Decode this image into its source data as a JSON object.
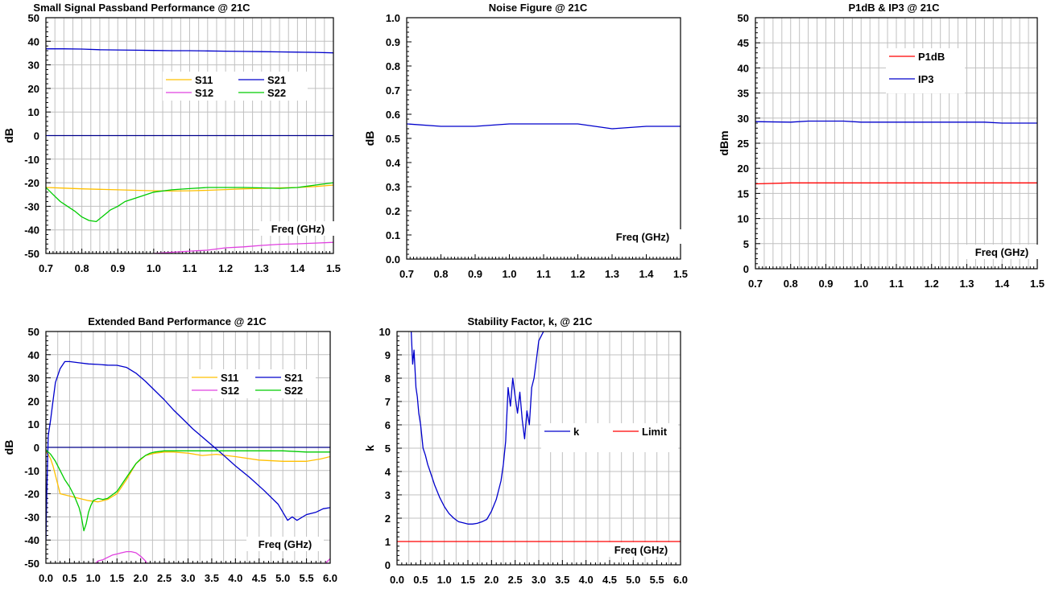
{
  "chart_data": [
    {
      "id": "c1",
      "type": "line",
      "title": "Small Signal Passband Performance @ 21C",
      "xlabel": "Freq (GHz)",
      "ylabel": "dB",
      "xlim": [
        0.7,
        1.5
      ],
      "ylim": [
        -50,
        50
      ],
      "xticks": [
        "0.7",
        "0.8",
        "0.9",
        "1.0",
        "1.1",
        "1.2",
        "1.3",
        "1.4",
        "1.5"
      ],
      "yticks": [
        "50",
        "40",
        "30",
        "20",
        "10",
        "0",
        "-10",
        "-20",
        "-30",
        "-40",
        "-50"
      ],
      "grid": true,
      "legend_cols": 2,
      "reflines": [
        {
          "y": 0,
          "color": "#00008b"
        }
      ],
      "series": [
        {
          "name": "S11",
          "color": "#ffc000",
          "x": [
            0.7,
            0.75,
            0.8,
            0.85,
            0.9,
            0.95,
            1.0,
            1.05,
            1.1,
            1.15,
            1.2,
            1.25,
            1.3,
            1.35,
            1.4,
            1.45,
            1.5
          ],
          "y": [
            -22,
            -22.3,
            -22.6,
            -22.8,
            -23,
            -23.2,
            -23.4,
            -23.5,
            -23.4,
            -23.2,
            -22.9,
            -22.6,
            -22.4,
            -22.2,
            -22,
            -21.6,
            -21
          ]
        },
        {
          "name": "S21",
          "color": "#0000cc",
          "x": [
            0.7,
            0.75,
            0.8,
            0.85,
            0.9,
            0.95,
            1.0,
            1.05,
            1.1,
            1.15,
            1.2,
            1.25,
            1.3,
            1.35,
            1.4,
            1.45,
            1.5
          ],
          "y": [
            36.8,
            36.8,
            36.7,
            36.4,
            36.3,
            36.2,
            36.1,
            36,
            36,
            35.9,
            35.8,
            35.7,
            35.6,
            35.5,
            35.4,
            35.3,
            35.1
          ]
        },
        {
          "name": "S12",
          "color": "#e040e0",
          "x": [
            0.7,
            0.8,
            0.9,
            1.0,
            1.05,
            1.1,
            1.15,
            1.2,
            1.25,
            1.3,
            1.35,
            1.4,
            1.45,
            1.5
          ],
          "y": [
            -56,
            -54,
            -52,
            -50,
            -49.5,
            -49,
            -48.6,
            -47.6,
            -47.2,
            -46.6,
            -46.1,
            -45.9,
            -45.6,
            -45.3
          ]
        },
        {
          "name": "S22",
          "color": "#00cc00",
          "x": [
            0.7,
            0.72,
            0.74,
            0.76,
            0.78,
            0.8,
            0.82,
            0.84,
            0.86,
            0.88,
            0.9,
            0.92,
            0.95,
            1.0,
            1.05,
            1.1,
            1.15,
            1.2,
            1.25,
            1.3,
            1.35,
            1.4,
            1.45,
            1.5
          ],
          "y": [
            -22,
            -25,
            -28,
            -30,
            -32,
            -34.5,
            -36,
            -36.5,
            -34,
            -31.5,
            -30,
            -28,
            -26.5,
            -24,
            -23,
            -22.5,
            -22,
            -22,
            -22,
            -22.2,
            -22.4,
            -22,
            -21,
            -20
          ]
        }
      ]
    },
    {
      "id": "c2",
      "type": "line",
      "title": "Noise Figure @ 21C",
      "xlabel": "Freq (GHz)",
      "ylabel": "dB",
      "xlim": [
        0.7,
        1.5
      ],
      "ylim": [
        0,
        1
      ],
      "xticks": [
        "0.7",
        "0.8",
        "0.9",
        "1.0",
        "1.1",
        "1.2",
        "1.3",
        "1.4",
        "1.5"
      ],
      "yticks": [
        "1.0",
        "0.9",
        "0.8",
        "0.7",
        "0.6",
        "0.5",
        "0.4",
        "0.3",
        "0.2",
        "0.1",
        "0.0"
      ],
      "grid": false,
      "legend_cols": 0,
      "reflines": [],
      "series": [
        {
          "name": "",
          "color": "#0000cc",
          "x": [
            0.7,
            0.8,
            0.9,
            1.0,
            1.1,
            1.2,
            1.25,
            1.3,
            1.35,
            1.4,
            1.5
          ],
          "y": [
            0.56,
            0.55,
            0.55,
            0.56,
            0.56,
            0.56,
            0.55,
            0.54,
            0.545,
            0.55,
            0.55
          ]
        }
      ]
    },
    {
      "id": "c3",
      "type": "line",
      "title": "P1dB & IP3 @ 21C",
      "xlabel": "Freq (GHz)",
      "ylabel": "dBm",
      "xlim": [
        0.7,
        1.5
      ],
      "ylim": [
        0,
        50
      ],
      "xticks": [
        "0.7",
        "0.8",
        "0.9",
        "1.0",
        "1.1",
        "1.2",
        "1.3",
        "1.4",
        "1.5"
      ],
      "yticks": [
        "50",
        "45",
        "40",
        "35",
        "30",
        "25",
        "20",
        "15",
        "10",
        "5",
        "0"
      ],
      "grid": true,
      "legend_cols": 1,
      "reflines": [],
      "series": [
        {
          "name": "P1dB",
          "color": "#ff0000",
          "x": [
            0.7,
            0.8,
            0.9,
            1.0,
            1.1,
            1.2,
            1.3,
            1.4,
            1.5
          ],
          "y": [
            16.9,
            17.1,
            17.1,
            17.1,
            17.1,
            17.1,
            17.1,
            17.1,
            17.1
          ]
        },
        {
          "name": "IP3",
          "color": "#0000cc",
          "x": [
            0.7,
            0.8,
            0.85,
            0.9,
            0.95,
            1.0,
            1.1,
            1.2,
            1.3,
            1.35,
            1.4,
            1.5
          ],
          "y": [
            29.3,
            29.2,
            29.4,
            29.4,
            29.4,
            29.2,
            29.2,
            29.2,
            29.2,
            29.2,
            29,
            29
          ]
        }
      ]
    },
    {
      "id": "c4",
      "type": "line",
      "title": "Extended Band Performance @ 21C",
      "xlabel": "Freq (GHz)",
      "ylabel": "dB",
      "xlim": [
        0,
        6
      ],
      "ylim": [
        -50,
        50
      ],
      "xticks": [
        "0.0",
        "0.5",
        "1.0",
        "1.5",
        "2.0",
        "2.5",
        "3.0",
        "3.5",
        "4.0",
        "4.5",
        "5.0",
        "5.5",
        "6.0"
      ],
      "yticks": [
        "50",
        "40",
        "30",
        "20",
        "10",
        "0",
        "-10",
        "-20",
        "-30",
        "-40",
        "-50"
      ],
      "grid": true,
      "legend_cols": 2,
      "reflines": [
        {
          "y": 0,
          "color": "#00008b"
        }
      ],
      "series": [
        {
          "name": "S11",
          "color": "#ffc000",
          "x": [
            0,
            0.05,
            0.1,
            0.15,
            0.2,
            0.3,
            0.4,
            0.5,
            0.7,
            0.9,
            1.1,
            1.3,
            1.5,
            1.7,
            1.9,
            2.1,
            2.3,
            2.5,
            2.7,
            3.0,
            3.3,
            3.6,
            4.0,
            4.5,
            5.0,
            5.5,
            5.8,
            6.0
          ],
          "y": [
            -2,
            -3,
            -5,
            -8,
            -12,
            -20,
            -20.5,
            -21,
            -22,
            -23,
            -23.5,
            -22.5,
            -20,
            -14,
            -7,
            -3.5,
            -2.5,
            -2,
            -2,
            -2.5,
            -3.5,
            -3,
            -4,
            -5.5,
            -6,
            -6,
            -5,
            -4
          ]
        },
        {
          "name": "S21",
          "color": "#0000cc",
          "x": [
            0,
            0.02,
            0.05,
            0.1,
            0.15,
            0.2,
            0.3,
            0.4,
            0.5,
            0.7,
            0.9,
            1.1,
            1.3,
            1.5,
            1.7,
            1.9,
            2.1,
            2.3,
            2.5,
            2.7,
            2.9,
            3.1,
            3.3,
            3.5,
            3.7,
            4.0,
            4.3,
            4.6,
            4.9,
            5.0,
            5.1,
            5.2,
            5.3,
            5.5,
            5.7,
            5.85,
            6.0
          ],
          "y": [
            -40,
            -18,
            5,
            12,
            20,
            28,
            34,
            37,
            37,
            36.5,
            36,
            35.8,
            35.5,
            35.4,
            34.5,
            32,
            28.5,
            24.5,
            20.5,
            16,
            12,
            8,
            4.5,
            1,
            -2.5,
            -8,
            -13,
            -18.5,
            -24.5,
            -28,
            -31.5,
            -30,
            -31.5,
            -29,
            -28,
            -26.5,
            -26
          ]
        },
        {
          "name": "S12",
          "color": "#e040e0",
          "x": [
            1.0,
            1.1,
            1.2,
            1.3,
            1.4,
            1.5,
            1.6,
            1.7,
            1.8,
            1.9,
            2.0,
            2.1,
            2.2,
            5.85,
            5.9,
            5.95,
            6.0
          ],
          "y": [
            -51,
            -49,
            -48.5,
            -47.5,
            -46.5,
            -46,
            -45.5,
            -45,
            -45,
            -45.5,
            -47,
            -49,
            -52,
            -52,
            -50,
            -49,
            -48
          ]
        },
        {
          "name": "S22",
          "color": "#00cc00",
          "x": [
            0,
            0.05,
            0.1,
            0.2,
            0.3,
            0.4,
            0.5,
            0.6,
            0.7,
            0.75,
            0.8,
            0.85,
            0.9,
            0.95,
            1.0,
            1.1,
            1.2,
            1.3,
            1.4,
            1.5,
            1.6,
            1.7,
            1.8,
            1.9,
            2.0,
            2.1,
            2.2,
            2.3,
            2.5,
            2.7,
            3.0,
            3.5,
            4.0,
            4.5,
            5.0,
            5.5,
            6.0
          ],
          "y": [
            -1,
            -2,
            -3,
            -6,
            -10,
            -14,
            -17,
            -21,
            -26,
            -30,
            -36,
            -33,
            -28,
            -25,
            -23,
            -22,
            -22.5,
            -22,
            -20.5,
            -19,
            -16,
            -13,
            -10,
            -7,
            -5,
            -3.5,
            -2.5,
            -2,
            -1.5,
            -1.5,
            -1.5,
            -1.5,
            -1.5,
            -1.5,
            -1.5,
            -2,
            -2
          ]
        }
      ]
    },
    {
      "id": "c5",
      "type": "line",
      "title": "Stability Factor, k, @ 21C",
      "xlabel": "Freq (GHz)",
      "ylabel": "k",
      "xlim": [
        0,
        6
      ],
      "ylim": [
        0,
        10
      ],
      "xticks": [
        "0.0",
        "0.5",
        "1.0",
        "1.5",
        "2.0",
        "2.5",
        "3.0",
        "3.5",
        "4.0",
        "4.5",
        "5.0",
        "5.5",
        "6.0"
      ],
      "yticks": [
        "10",
        "9",
        "8",
        "7",
        "6",
        "5",
        "4",
        "3",
        "2",
        "1",
        "0"
      ],
      "grid": true,
      "legend_cols": 2,
      "reflines": [],
      "series": [
        {
          "name": "k",
          "color": "#0000cc",
          "x": [
            0.3,
            0.33,
            0.36,
            0.4,
            0.43,
            0.46,
            0.5,
            0.55,
            0.6,
            0.65,
            0.7,
            0.8,
            0.9,
            1.0,
            1.1,
            1.2,
            1.3,
            1.4,
            1.5,
            1.6,
            1.7,
            1.8,
            1.9,
            2.0,
            2.1,
            2.2,
            2.25,
            2.3,
            2.35,
            2.4,
            2.45,
            2.5,
            2.55,
            2.6,
            2.65,
            2.7,
            2.75,
            2.8,
            2.85,
            2.9,
            2.95,
            3.0,
            3.05,
            3.1
          ],
          "y": [
            10,
            8.6,
            9.2,
            7.6,
            7.2,
            6.5,
            6,
            5,
            4.7,
            4.3,
            4,
            3.4,
            2.9,
            2.5,
            2.2,
            2,
            1.85,
            1.8,
            1.75,
            1.75,
            1.78,
            1.85,
            1.95,
            2.3,
            2.8,
            3.6,
            4.3,
            5.3,
            7.6,
            6.8,
            8,
            7.2,
            6.5,
            7.4,
            6.2,
            5.4,
            6.6,
            6,
            7.6,
            8,
            8.8,
            9.6,
            9.8,
            10
          ]
        },
        {
          "name": "Limit",
          "color": "#ff0000",
          "x": [
            0,
            6
          ],
          "y": [
            1,
            1
          ]
        }
      ]
    }
  ]
}
